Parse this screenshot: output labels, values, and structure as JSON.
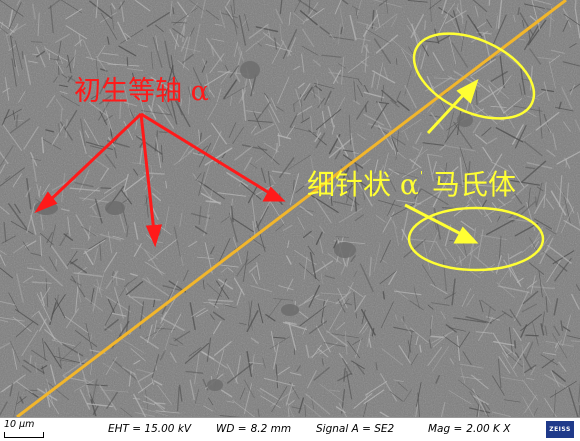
{
  "annotations": {
    "primary_alpha": "初生等轴 α",
    "martensite_main": "细针状 α",
    "martensite_prime": "'",
    "martensite_tail": " 马氏体"
  },
  "databar": {
    "scale": "10 μm",
    "eht_label": "EHT = 15.00 kV",
    "wd_label": "WD =",
    "wd_value": "8.2 mm",
    "signal_label": "Signal A = SE2",
    "mag_label": "Mag =",
    "mag_value": "2.00 K X",
    "logo": "ZEISS"
  },
  "colors": {
    "red_annotation": "#ff1a1a",
    "yellow_annotation": "#ffff33",
    "diagonal_line": "#f2b62b",
    "background_gray": "#7c7c7c"
  }
}
